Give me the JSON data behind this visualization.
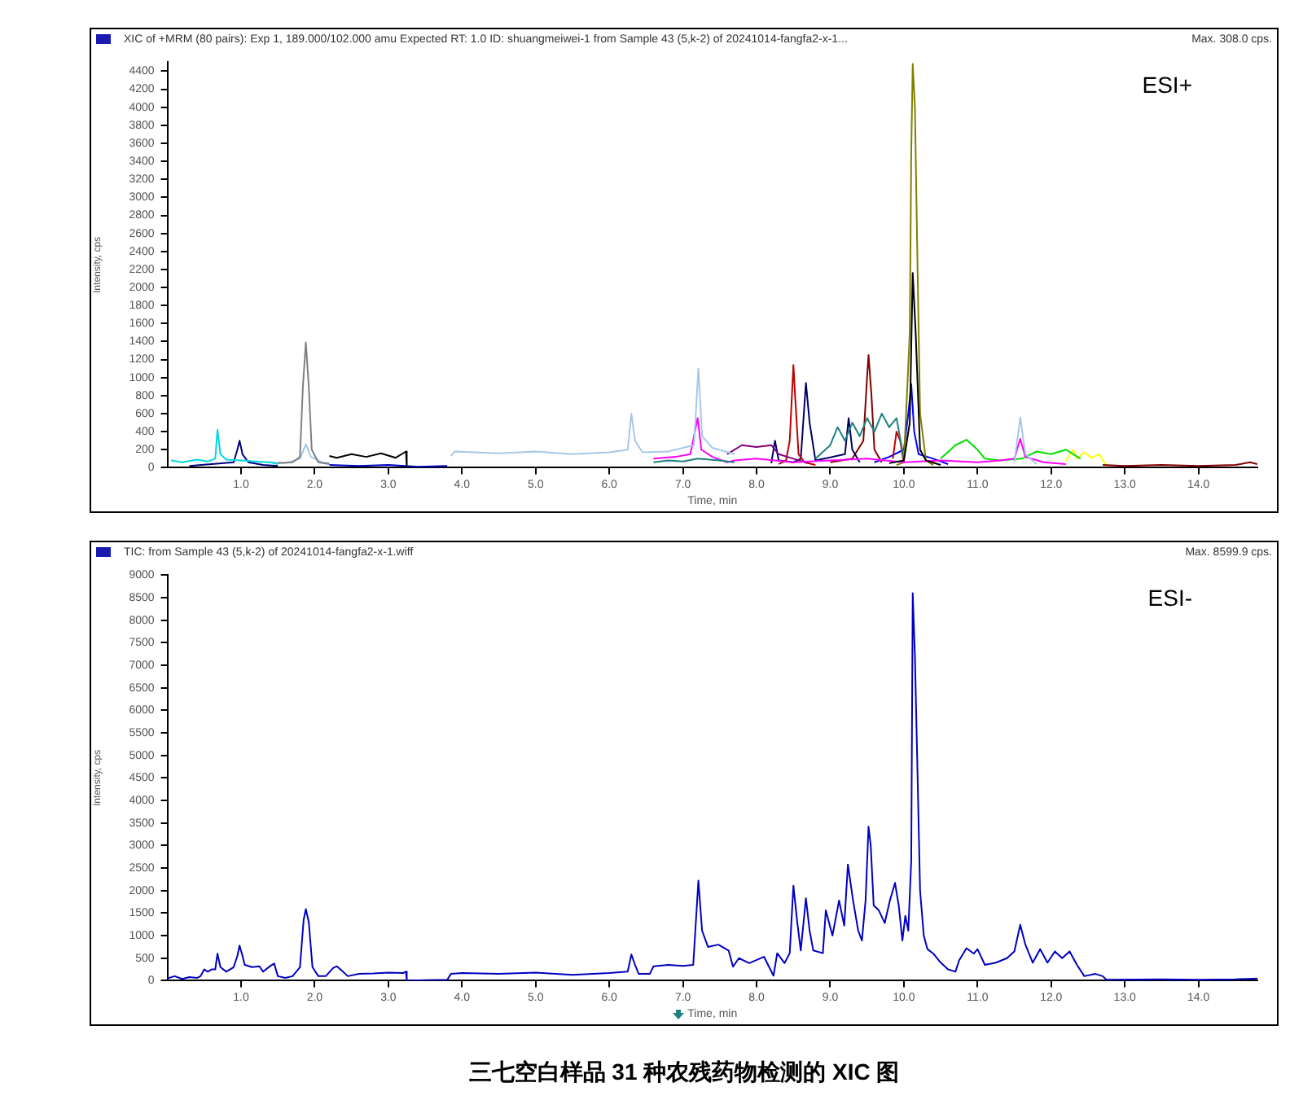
{
  "chart_data": [
    {
      "type": "line",
      "title": "XIC of +MRM (80 pairs): Exp 1, 189.000/102.000 amu Expected RT: 1.0 ID: shuangmeiwei-1 from Sample 43 (5,k-2) of 20241014-fangfa2-x-1...",
      "subtitle": "Max. 308.0 cps.",
      "xlabel": "Time, min",
      "ylabel": "Intensity, cps",
      "annotations": [
        "ESI+"
      ],
      "xlim": [
        0,
        14.8
      ],
      "xticks": [
        {
          "value": 1,
          "label": "1.0"
        },
        {
          "value": 2,
          "label": "2.0"
        },
        {
          "value": 3,
          "label": "3.0"
        },
        {
          "value": 4,
          "label": "4.0"
        },
        {
          "value": 5,
          "label": "5.0"
        },
        {
          "value": 6,
          "label": "6.0"
        },
        {
          "value": 7,
          "label": "7.0"
        },
        {
          "value": 8,
          "label": "8.0"
        },
        {
          "value": 9,
          "label": "9.0"
        },
        {
          "value": 10,
          "label": "10.0"
        },
        {
          "value": 11,
          "label": "11.0"
        },
        {
          "value": 12,
          "label": "12.0"
        },
        {
          "value": 13,
          "label": "13.0"
        },
        {
          "value": 14,
          "label": "14.0"
        }
      ],
      "ylim": [
        0,
        4500
      ],
      "yticks": [
        0,
        200,
        400,
        600,
        800,
        1000,
        1200,
        1400,
        1600,
        1800,
        2000,
        2200,
        2400,
        2600,
        2800,
        3000,
        3200,
        3400,
        3600,
        3800,
        4000,
        4200,
        4400
      ],
      "series": [
        {
          "color": "#00d8e0",
          "x": [
            0.05,
            0.2,
            0.4,
            0.55,
            0.65,
            0.68,
            0.72,
            0.8,
            1.0,
            1.2,
            1.4,
            1.5
          ],
          "values": [
            80,
            60,
            90,
            70,
            100,
            420,
            150,
            90,
            80,
            70,
            60,
            40
          ]
        },
        {
          "color": "#000080",
          "x": [
            0.3,
            0.6,
            0.9,
            0.95,
            0.98,
            1.02,
            1.1,
            1.3,
            1.5
          ],
          "values": [
            20,
            40,
            60,
            200,
            300,
            150,
            60,
            30,
            20
          ]
        },
        {
          "color": "#808080",
          "x": [
            1.5,
            1.7,
            1.8,
            1.84,
            1.88,
            1.92,
            1.96,
            2.05,
            2.2
          ],
          "values": [
            50,
            60,
            120,
            900,
            1390,
            900,
            200,
            60,
            40
          ]
        },
        {
          "color": "#a6c8e8",
          "x": [
            1.4,
            1.6,
            1.8,
            1.88,
            1.95,
            2.1,
            2.2,
            2.3,
            3.85,
            3.9,
            4.5,
            5.0,
            5.5,
            6.0,
            6.25,
            6.3,
            6.35,
            6.45,
            6.8,
            7.15,
            7.21,
            7.26,
            7.4,
            7.7,
            8.0,
            11.5,
            11.58,
            11.65,
            11.8
          ],
          "values": [
            60,
            50,
            100,
            260,
            120,
            60,
            50,
            null,
            130,
            180,
            160,
            180,
            150,
            170,
            200,
            600,
            300,
            170,
            180,
            250,
            1100,
            350,
            220,
            150,
            null,
            60,
            560,
            150,
            40
          ]
        },
        {
          "color": "#000000",
          "x": [
            2.2,
            2.3,
            2.5,
            2.7,
            2.9,
            3.1,
            3.24,
            3.25,
            3.3,
            9.8,
            10.0,
            10.08,
            10.12,
            10.16,
            10.22,
            10.3,
            10.5
          ],
          "values": [
            130,
            110,
            150,
            120,
            160,
            110,
            180,
            0,
            null,
            50,
            80,
            500,
            2160,
            1500,
            200,
            80,
            30
          ]
        },
        {
          "color": "#0000c0",
          "x": [
            2.2,
            2.6,
            3.0,
            3.4,
            3.8
          ],
          "values": [
            30,
            20,
            30,
            10,
            20
          ]
        },
        {
          "color": "#208080",
          "x": [
            6.6,
            6.8,
            7.0,
            7.2,
            7.5,
            7.7,
            8.0,
            8.8,
            9.0,
            9.1,
            9.2,
            9.3,
            9.4,
            9.5,
            9.6,
            9.7,
            9.8,
            9.9,
            10.0
          ],
          "values": [
            60,
            80,
            70,
            100,
            80,
            60,
            null,
            100,
            250,
            450,
            300,
            500,
            350,
            550,
            400,
            600,
            450,
            550,
            100
          ]
        },
        {
          "color": "#ff00ff",
          "x": [
            6.6,
            6.9,
            7.1,
            7.2,
            7.25,
            7.4,
            7.6,
            7.7,
            8.0,
            8.5,
            9.0,
            9.5,
            10.0,
            10.5,
            11.0,
            11.3,
            11.5,
            11.58,
            11.65,
            11.9,
            12.2
          ],
          "values": [
            100,
            120,
            150,
            550,
            200,
            120,
            60,
            80,
            100,
            60,
            80,
            100,
            60,
            80,
            60,
            80,
            100,
            320,
            120,
            60,
            40
          ]
        },
        {
          "color": "#800080",
          "x": [
            7.6,
            7.8,
            8.0,
            8.2,
            8.3,
            8.5,
            8.7
          ],
          "values": [
            150,
            250,
            230,
            250,
            150,
            100,
            50
          ]
        },
        {
          "color": "#c00000",
          "x": [
            8.3,
            8.4,
            8.45,
            8.5,
            8.53,
            8.57,
            8.65,
            8.8,
            9.0,
            9.85,
            9.9,
            9.95,
            10.0
          ],
          "values": [
            40,
            80,
            300,
            1140,
            700,
            150,
            60,
            30,
            null,
            100,
            400,
            300,
            50
          ]
        },
        {
          "color": "#000060",
          "x": [
            8.2,
            8.25,
            8.3,
            8.5,
            8.6,
            8.67,
            8.72,
            8.8,
            9.2,
            9.25,
            9.3,
            9.4
          ],
          "values": [
            50,
            300,
            80,
            60,
            100,
            940,
            500,
            80,
            150,
            550,
            200,
            60
          ]
        },
        {
          "color": "#800000",
          "x": [
            9.0,
            9.3,
            9.45,
            9.5,
            9.52,
            9.56,
            9.6,
            9.7,
            9.8,
            12.7,
            13.0,
            13.5,
            14.0,
            14.5,
            14.7,
            14.8
          ],
          "values": [
            60,
            100,
            300,
            1000,
            1250,
            800,
            200,
            60,
            null,
            30,
            20,
            30,
            20,
            30,
            60,
            40
          ]
        },
        {
          "color": "#808000",
          "x": [
            9.9,
            10.0,
            10.08,
            10.1,
            10.12,
            10.15,
            10.18,
            10.22,
            10.3,
            10.4
          ],
          "values": [
            30,
            60,
            1500,
            3500,
            4480,
            4000,
            2500,
            600,
            80,
            30
          ]
        },
        {
          "color": "#0000ff",
          "x": [
            9.6,
            9.8,
            10.0,
            10.06,
            10.1,
            10.14,
            10.2,
            10.4,
            10.6
          ],
          "values": [
            60,
            120,
            200,
            600,
            930,
            400,
            150,
            100,
            40
          ]
        },
        {
          "color": "#00e000",
          "x": [
            10.5,
            10.7,
            10.85,
            11.0,
            11.1,
            11.3,
            11.6,
            11.8,
            12.0,
            12.2,
            12.4
          ],
          "values": [
            100,
            250,
            310,
            200,
            100,
            80,
            100,
            180,
            150,
            200,
            100
          ]
        },
        {
          "color": "#ffff00",
          "x": [
            12.2,
            12.3,
            12.35,
            12.45,
            12.55,
            12.65,
            12.75
          ],
          "values": [
            80,
            200,
            100,
            170,
            110,
            150,
            20
          ]
        }
      ]
    },
    {
      "type": "line",
      "title": "TIC: from Sample 43 (5,k-2) of 20241014-fangfa2-x-1.wiff",
      "subtitle": "Max. 8599.9 cps.",
      "xlabel": "Time, min",
      "ylabel": "Intensity, cps",
      "annotations": [
        "ESI-",
        "三七空白样品 31 种农残药物检测的 XIC 图"
      ],
      "xlim": [
        0,
        14.8
      ],
      "xticks": [
        {
          "value": 1,
          "label": "1.0"
        },
        {
          "value": 2,
          "label": "2.0"
        },
        {
          "value": 3,
          "label": "3.0"
        },
        {
          "value": 4,
          "label": "4.0"
        },
        {
          "value": 5,
          "label": "5.0"
        },
        {
          "value": 6,
          "label": "6.0"
        },
        {
          "value": 7,
          "label": "7.0"
        },
        {
          "value": 8,
          "label": "8.0"
        },
        {
          "value": 9,
          "label": "9.0"
        },
        {
          "value": 10,
          "label": "10.0"
        },
        {
          "value": 11,
          "label": "11.0"
        },
        {
          "value": 12,
          "label": "12.0"
        },
        {
          "value": 13,
          "label": "13.0"
        },
        {
          "value": 14,
          "label": "14.0"
        }
      ],
      "ylim": [
        0,
        9000
      ],
      "yticks": [
        0,
        500,
        1000,
        1500,
        2000,
        2500,
        3000,
        3500,
        4000,
        4500,
        5000,
        5500,
        6000,
        6500,
        7000,
        7500,
        8000,
        8500,
        9000
      ],
      "series": [
        {
          "color": "#0000c0",
          "x": [
            0.0,
            0.1,
            0.2,
            0.3,
            0.4,
            0.45,
            0.5,
            0.55,
            0.6,
            0.65,
            0.68,
            0.72,
            0.8,
            0.9,
            0.95,
            0.98,
            1.02,
            1.05,
            1.15,
            1.25,
            1.3,
            1.4,
            1.45,
            1.5,
            1.6,
            1.7,
            1.8,
            1.85,
            1.88,
            1.92,
            1.97,
            2.05,
            2.15,
            2.25,
            2.3,
            2.35,
            2.45,
            2.6,
            2.8,
            3.0,
            3.2,
            3.24,
            3.25,
            3.5,
            3.8,
            3.85,
            4.0,
            4.5,
            5.0,
            5.5,
            6.0,
            6.25,
            6.3,
            6.35,
            6.4,
            6.55,
            6.6,
            6.8,
            7.0,
            7.14,
            7.21,
            7.26,
            7.34,
            7.48,
            7.62,
            7.68,
            7.76,
            7.9,
            8.1,
            8.23,
            8.28,
            8.38,
            8.45,
            8.5,
            8.55,
            8.6,
            8.67,
            8.72,
            8.77,
            8.9,
            8.94,
            9.03,
            9.12,
            9.19,
            9.24,
            9.31,
            9.38,
            9.43,
            9.48,
            9.52,
            9.55,
            9.59,
            9.66,
            9.74,
            9.81,
            9.88,
            9.93,
            9.98,
            10.02,
            10.06,
            10.1,
            10.12,
            10.15,
            10.18,
            10.22,
            10.27,
            10.32,
            10.4,
            10.5,
            10.6,
            10.7,
            10.75,
            10.85,
            10.95,
            11.0,
            11.1,
            11.25,
            11.4,
            11.5,
            11.58,
            11.65,
            11.75,
            11.85,
            11.95,
            12.05,
            12.15,
            12.25,
            12.35,
            12.45,
            12.6,
            12.7,
            12.75,
            13.5,
            14.0,
            14.5,
            14.8
          ],
          "values": [
            50,
            100,
            40,
            80,
            60,
            100,
            250,
            200,
            250,
            250,
            600,
            300,
            200,
            300,
            550,
            780,
            550,
            350,
            300,
            320,
            200,
            330,
            380,
            100,
            60,
            100,
            300,
            1350,
            1590,
            1300,
            300,
            100,
            100,
            280,
            320,
            250,
            100,
            150,
            160,
            180,
            170,
            200,
            0,
            10,
            20,
            150,
            170,
            150,
            180,
            130,
            170,
            200,
            580,
            350,
            150,
            150,
            320,
            350,
            330,
            350,
            2220,
            1110,
            750,
            800,
            670,
            310,
            500,
            390,
            530,
            110,
            610,
            390,
            610,
            2110,
            1330,
            670,
            1830,
            1110,
            670,
            610,
            1560,
            1000,
            1780,
            1220,
            2580,
            1780,
            1110,
            890,
            1780,
            3420,
            3000,
            1670,
            1560,
            1280,
            1780,
            2170,
            1670,
            890,
            1440,
            1110,
            2670,
            8600,
            7200,
            5000,
            2000,
            1000,
            700,
            600,
            400,
            250,
            200,
            450,
            720,
            600,
            700,
            350,
            400,
            500,
            650,
            1240,
            800,
            400,
            700,
            400,
            650,
            500,
            650,
            350,
            100,
            150,
            100,
            20,
            30,
            20,
            30,
            50
          ]
        }
      ]
    }
  ]
}
